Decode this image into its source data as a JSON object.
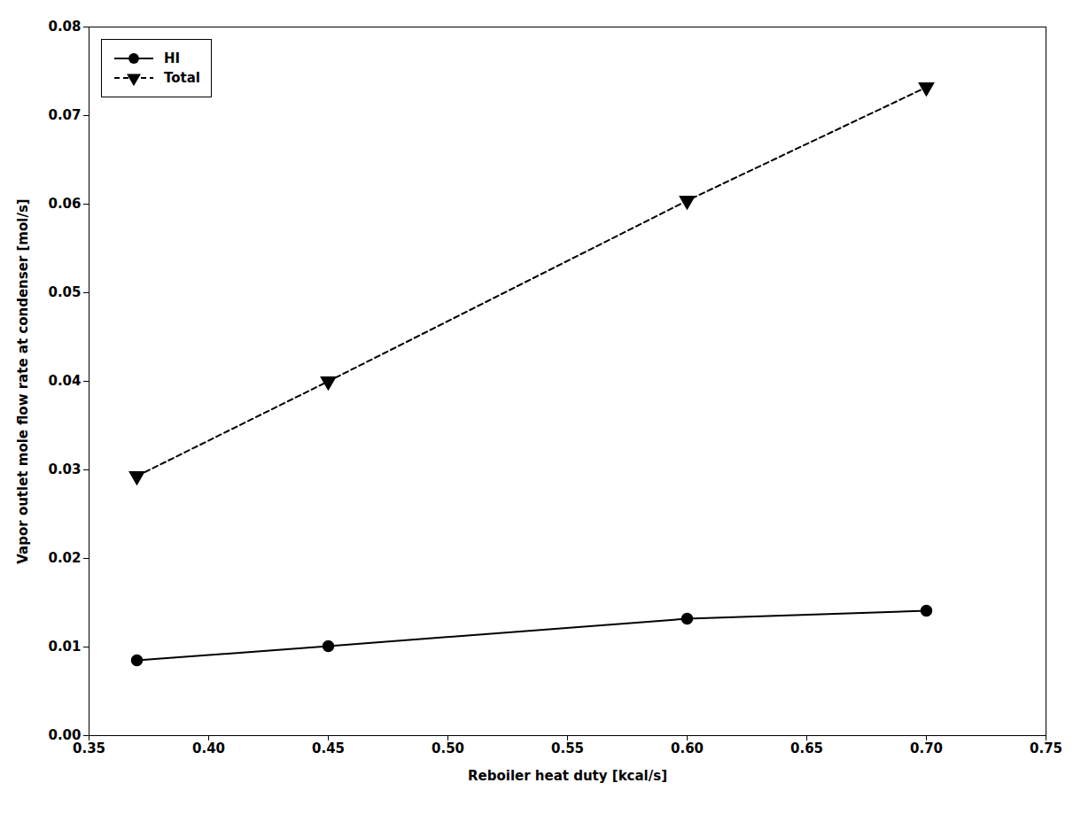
{
  "chart_data": {
    "type": "line",
    "x": [
      0.37,
      0.45,
      0.6,
      0.7
    ],
    "series": [
      {
        "name": "HI",
        "color": "#000000",
        "marker": "circle",
        "line_style": "solid",
        "values": [
          0.0085,
          0.0101,
          0.0132,
          0.0141
        ]
      },
      {
        "name": "Total",
        "color": "#000000",
        "marker": "triangle-down",
        "line_style": "dashed",
        "values": [
          0.0293,
          0.04,
          0.0604,
          0.0732
        ]
      }
    ],
    "xlabel": "Reboiler heat duty [kcal/s]",
    "ylabel": "Vapor outlet mole flow rate at condenser [mol/s]",
    "xlim": [
      0.35,
      0.75
    ],
    "ylim": [
      0.0,
      0.08
    ],
    "xticks": [
      0.35,
      {
        "value": 0.4,
        "label": "0.40"
      },
      0.45,
      {
        "value": 0.5,
        "label": "0.50"
      },
      0.55,
      {
        "value": 0.6,
        "label": "0.60"
      },
      0.65,
      {
        "value": 0.7,
        "label": "0.70"
      },
      0.75
    ],
    "yticks": [
      {
        "value": 0.0,
        "label": "0.00"
      },
      0.01,
      0.02,
      0.03,
      0.04,
      0.05,
      0.06,
      0.07,
      0.08
    ],
    "legend": "upper left",
    "grid": false
  }
}
